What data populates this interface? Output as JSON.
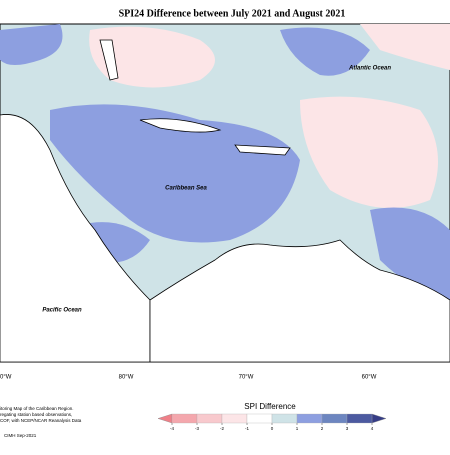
{
  "title": "SPI24 Difference between July 2021 and August 2021",
  "map": {
    "labels": [
      "Atlantic Ocean",
      "Caribbean Sea",
      "Pacific Ocean"
    ],
    "longitudes": [
      "0°W",
      "80°W",
      "70°W",
      "60°W"
    ]
  },
  "legend": {
    "title": "SPI Difference",
    "ticks": [
      -4,
      -3,
      -2,
      -1,
      0,
      1,
      2,
      3,
      4
    ],
    "colors": [
      "#ef8088",
      "#f4a7ad",
      "#f8c9cd",
      "#fce5e7",
      "#ffffff",
      "#cfe3e7",
      "#8d9fe0",
      "#6d86c0",
      "#4c5aa0",
      "#363d86"
    ]
  },
  "footer": {
    "lines": [
      "itoring Map of the Caribbean Region.",
      "regating station based observations,",
      "COF, with NCEP/NCAR Reanalysis Data"
    ],
    "credit": "CIMH Sep-2021"
  }
}
